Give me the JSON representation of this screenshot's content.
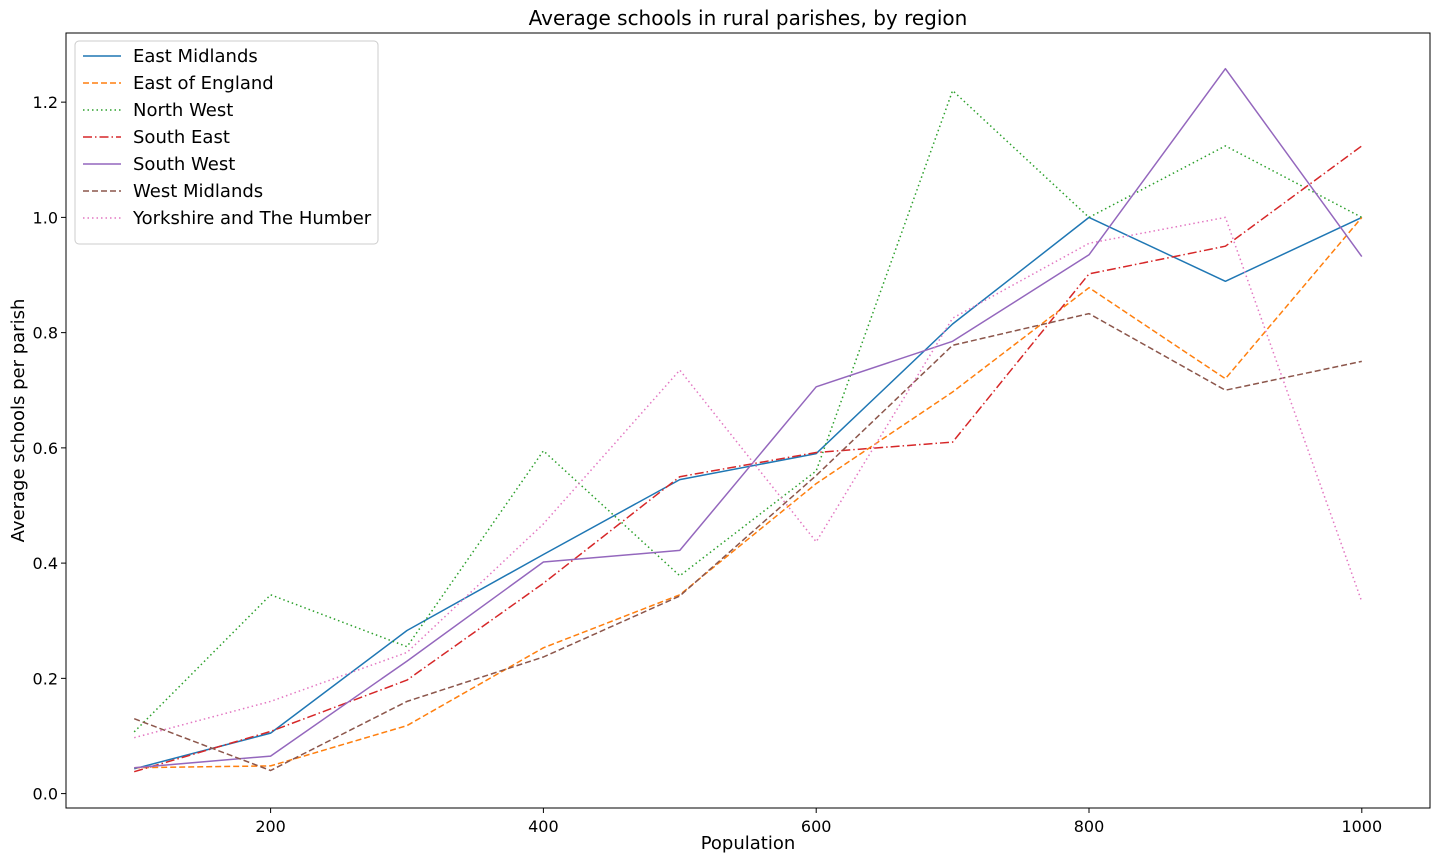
{
  "chart_data": {
    "type": "line",
    "title": "Average schools in rural parishes, by region",
    "xlabel": "Population",
    "ylabel": "Average schools per parish",
    "x": [
      100,
      200,
      300,
      400,
      500,
      600,
      700,
      800,
      900,
      1000
    ],
    "xlim": [
      50,
      1050
    ],
    "ylim": [
      -0.025,
      1.32
    ],
    "xticks": [
      200,
      400,
      600,
      800,
      1000
    ],
    "yticks": [
      0.0,
      0.2,
      0.4,
      0.6,
      0.8,
      1.0,
      1.2
    ],
    "xtick_labels": [
      "200",
      "400",
      "600",
      "800",
      "1000"
    ],
    "ytick_labels": [
      "0.0",
      "0.2",
      "0.4",
      "0.6",
      "0.8",
      "1.0",
      "1.2"
    ],
    "grid": false,
    "legend_position": "top-left",
    "series": [
      {
        "name": "East Midlands",
        "color": "#1f77b4",
        "style": "solid",
        "values": [
          0.043,
          0.105,
          0.283,
          0.415,
          0.545,
          0.59,
          0.815,
          1.0,
          0.889,
          1.0
        ]
      },
      {
        "name": "East of England",
        "color": "#ff7f0e",
        "style": "dashed",
        "values": [
          0.045,
          0.048,
          0.118,
          0.253,
          0.345,
          0.538,
          0.697,
          0.878,
          0.72,
          1.0
        ]
      },
      {
        "name": "North West",
        "color": "#2ca02c",
        "style": "dotted",
        "values": [
          0.107,
          0.345,
          0.255,
          0.595,
          0.378,
          0.56,
          1.22,
          1.0,
          1.124,
          1.0
        ]
      },
      {
        "name": "South East",
        "color": "#d62728",
        "style": "dashdot",
        "values": [
          0.038,
          0.108,
          0.197,
          0.365,
          0.55,
          0.592,
          0.61,
          0.902,
          0.95,
          1.124
        ]
      },
      {
        "name": "South West",
        "color": "#9467bd",
        "style": "solid",
        "values": [
          0.045,
          0.065,
          0.23,
          0.402,
          0.422,
          0.706,
          0.785,
          0.935,
          1.258,
          0.932
        ]
      },
      {
        "name": "West Midlands",
        "color": "#8c564b",
        "style": "dashed",
        "values": [
          0.13,
          0.04,
          0.16,
          0.237,
          0.343,
          0.552,
          0.778,
          0.833,
          0.7,
          0.75
        ]
      },
      {
        "name": "Yorkshire and The Humber",
        "color": "#e377c2",
        "style": "dotted",
        "values": [
          0.097,
          0.16,
          0.245,
          0.468,
          0.735,
          0.437,
          0.825,
          0.955,
          1.0,
          0.333
        ]
      }
    ]
  }
}
